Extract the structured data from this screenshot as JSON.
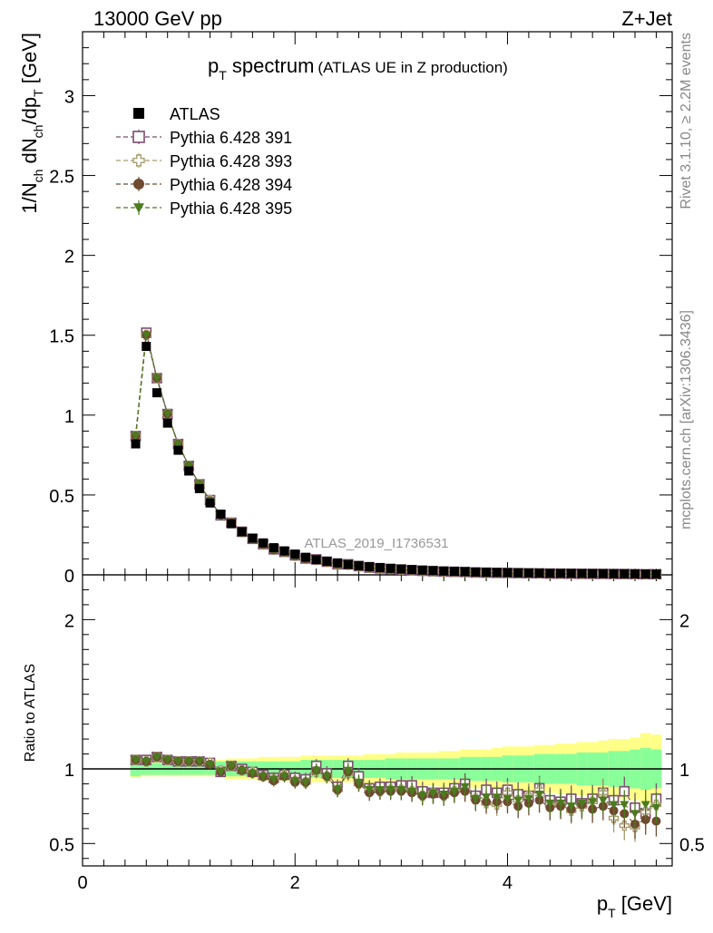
{
  "header": {
    "left": "13000 GeV pp",
    "right": "Z+Jet"
  },
  "side_labels": {
    "rivet": "Rivet 3.1.10, ≥ 2.2M events",
    "mcplots": "mcplots.cern.ch [arXiv:1306.3436]"
  },
  "chart_data": {
    "type": "scatter",
    "title": "p_T spectrum",
    "title_parts": {
      "main": "p",
      "sub": "T",
      "rest": " spectrum",
      "note": "(ATLAS UE in Z production)"
    },
    "analysis_label": "ATLAS_2019_I1736531",
    "xlabel": "p_T [GeV]",
    "ylabel": "1/N_ch dN_ch/dp_T [GeV]",
    "ratio_ylabel": "Ratio to ATLAS",
    "xlim": [
      0,
      5.55
    ],
    "ylim": [
      0,
      3.4
    ],
    "ratio_ylim": [
      0.35,
      2.3
    ],
    "x_ticks": [
      "0",
      "2",
      "4"
    ],
    "y_ticks": [
      "0",
      "0.5",
      "1",
      "1.5",
      "2",
      "2.5",
      "3"
    ],
    "ratio_ticks": [
      "0.5",
      "1",
      "2"
    ],
    "legend_position": "top-left",
    "x": [
      0.5,
      0.6,
      0.7,
      0.8,
      0.9,
      1.0,
      1.1,
      1.2,
      1.3,
      1.4,
      1.5,
      1.6,
      1.7,
      1.8,
      1.9,
      2.0,
      2.1,
      2.2,
      2.3,
      2.4,
      2.5,
      2.6,
      2.7,
      2.8,
      2.9,
      3.0,
      3.1,
      3.2,
      3.3,
      3.4,
      3.5,
      3.6,
      3.7,
      3.8,
      3.9,
      4.0,
      4.1,
      4.2,
      4.3,
      4.4,
      4.5,
      4.6,
      4.7,
      4.8,
      4.9,
      5.0,
      5.1,
      5.2,
      5.3,
      5.4
    ],
    "atlas": [
      0.82,
      1.43,
      1.14,
      0.95,
      0.78,
      0.65,
      0.54,
      0.45,
      0.38,
      0.32,
      0.27,
      0.23,
      0.2,
      0.17,
      0.15,
      0.13,
      0.11,
      0.095,
      0.085,
      0.075,
      0.065,
      0.058,
      0.052,
      0.046,
      0.041,
      0.037,
      0.033,
      0.03,
      0.027,
      0.024,
      0.022,
      0.02,
      0.018,
      0.016,
      0.015,
      0.014,
      0.013,
      0.012,
      0.011,
      0.01,
      0.0095,
      0.009,
      0.0085,
      0.008,
      0.0075,
      0.007,
      0.0065,
      0.006,
      0.0055,
      0.005
    ],
    "band_inner": [
      0.05,
      0.04,
      0.04,
      0.04,
      0.04,
      0.04,
      0.04,
      0.04,
      0.05,
      0.05,
      0.05,
      0.05,
      0.05,
      0.05,
      0.05,
      0.05,
      0.06,
      0.06,
      0.06,
      0.06,
      0.06,
      0.06,
      0.06,
      0.06,
      0.07,
      0.07,
      0.07,
      0.07,
      0.07,
      0.07,
      0.07,
      0.08,
      0.08,
      0.08,
      0.08,
      0.09,
      0.09,
      0.09,
      0.1,
      0.1,
      0.1,
      0.1,
      0.11,
      0.11,
      0.11,
      0.12,
      0.12,
      0.13,
      0.14,
      0.13
    ],
    "band_outer": [
      0.06,
      0.05,
      0.05,
      0.05,
      0.05,
      0.05,
      0.05,
      0.05,
      0.06,
      0.07,
      0.07,
      0.07,
      0.08,
      0.08,
      0.08,
      0.08,
      0.09,
      0.09,
      0.09,
      0.09,
      0.09,
      0.09,
      0.1,
      0.1,
      0.1,
      0.11,
      0.11,
      0.11,
      0.11,
      0.12,
      0.12,
      0.13,
      0.13,
      0.13,
      0.14,
      0.15,
      0.15,
      0.15,
      0.16,
      0.16,
      0.17,
      0.17,
      0.18,
      0.18,
      0.19,
      0.2,
      0.2,
      0.21,
      0.24,
      0.23
    ],
    "series": [
      {
        "name": "ATLAS",
        "color": "#000000",
        "marker": "filled-square"
      },
      {
        "name": "Pythia 6.428 391",
        "color": "#7b4e6e",
        "marker": "open-square",
        "ratio": [
          1.06,
          1.06,
          1.08,
          1.06,
          1.05,
          1.05,
          1.05,
          1.04,
          0.98,
          1.02,
          1.0,
          0.98,
          0.96,
          0.94,
          0.96,
          0.94,
          0.93,
          1.02,
          0.97,
          0.88,
          1.02,
          0.95,
          0.87,
          0.88,
          0.88,
          0.89,
          0.89,
          0.85,
          0.84,
          0.84,
          0.87,
          0.9,
          0.82,
          0.86,
          0.84,
          0.86,
          0.83,
          0.82,
          0.87,
          0.79,
          0.78,
          0.8,
          0.77,
          0.8,
          0.84,
          0.79,
          0.85,
          0.74,
          0.7,
          0.8
        ]
      },
      {
        "name": "Pythia 6.428 393",
        "color": "#a89c6e",
        "marker": "open-cross",
        "ratio": [
          1.06,
          1.05,
          1.08,
          1.06,
          1.05,
          1.05,
          1.05,
          1.04,
          0.99,
          1.02,
          0.99,
          0.98,
          0.95,
          0.93,
          0.96,
          0.92,
          0.91,
          0.98,
          0.95,
          0.86,
          0.97,
          0.9,
          0.86,
          0.85,
          0.86,
          0.86,
          0.85,
          0.82,
          0.84,
          0.82,
          0.85,
          0.86,
          0.8,
          0.77,
          0.76,
          0.84,
          0.79,
          0.82,
          0.86,
          0.76,
          0.76,
          0.72,
          0.75,
          0.78,
          0.84,
          0.67,
          0.62,
          0.61,
          0.71,
          0.76
        ]
      },
      {
        "name": "Pythia 6.428 394",
        "color": "#6e4a30",
        "marker": "filled-circle",
        "ratio": [
          1.06,
          1.05,
          1.08,
          1.06,
          1.05,
          1.05,
          1.05,
          1.03,
          0.98,
          1.02,
          0.99,
          0.97,
          0.95,
          0.92,
          0.95,
          0.91,
          0.91,
          0.99,
          0.95,
          0.86,
          0.98,
          0.9,
          0.84,
          0.85,
          0.85,
          0.85,
          0.84,
          0.82,
          0.83,
          0.82,
          0.84,
          0.85,
          0.79,
          0.78,
          0.78,
          0.78,
          0.75,
          0.77,
          0.79,
          0.74,
          0.75,
          0.73,
          0.76,
          0.73,
          0.75,
          0.72,
          0.7,
          0.63,
          0.66,
          0.65
        ]
      },
      {
        "name": "Pythia 6.428 395",
        "color": "#4c7a1e",
        "marker": "filled-triangle-down",
        "ratio": [
          1.06,
          1.05,
          1.08,
          1.06,
          1.05,
          1.05,
          1.05,
          1.03,
          0.98,
          1.02,
          0.99,
          0.97,
          0.95,
          0.93,
          0.95,
          0.92,
          0.91,
          0.99,
          0.95,
          0.86,
          0.99,
          0.91,
          0.86,
          0.86,
          0.86,
          0.86,
          0.85,
          0.82,
          0.84,
          0.83,
          0.85,
          0.88,
          0.8,
          0.81,
          0.81,
          0.8,
          0.79,
          0.8,
          0.83,
          0.77,
          0.77,
          0.75,
          0.77,
          0.78,
          0.79,
          0.76,
          0.76,
          0.7,
          0.76,
          0.74
        ]
      }
    ]
  }
}
